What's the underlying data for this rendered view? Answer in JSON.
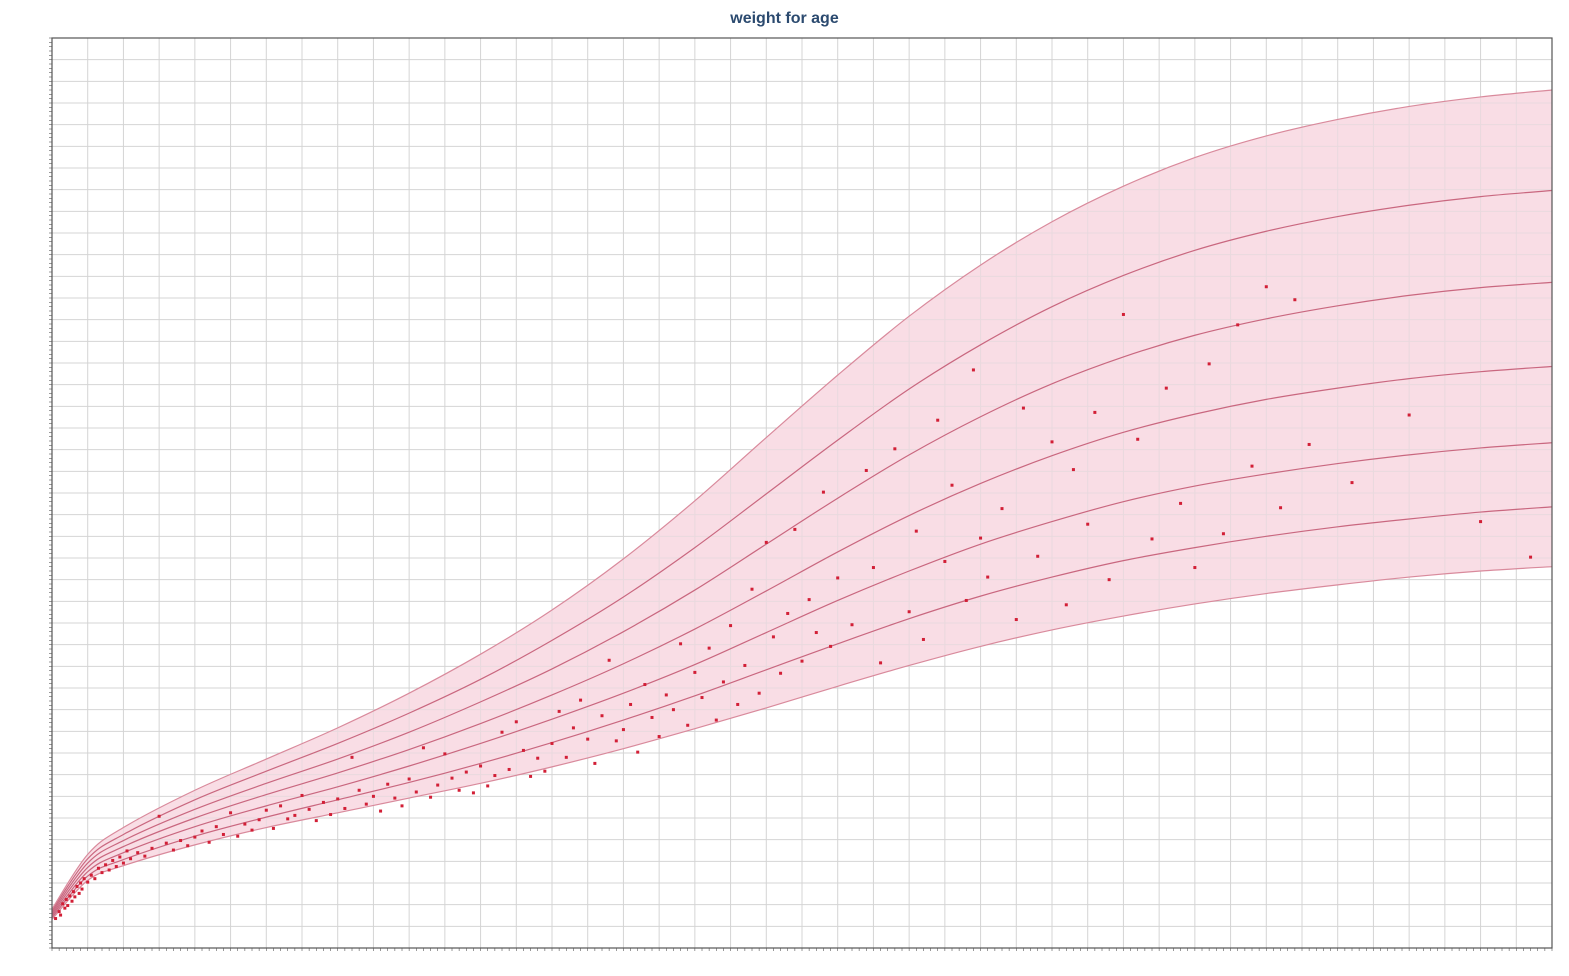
{
  "chart_data": {
    "type": "line",
    "title": "weight for age",
    "xlabel": "",
    "ylabel": "",
    "xlim": [
      0,
      21
    ],
    "ylim": [
      0,
      105
    ],
    "x_tick_step": 0.5,
    "y_tick_step": 2.5,
    "grid": true,
    "legend": "none",
    "colors": {
      "band_fill": "#f9dde5",
      "curve": "#c9677f",
      "outer_curve": "#d98a9c",
      "point": "#d21f36",
      "grid": "#d4d4d4",
      "frame": "#555555",
      "title": "#2b4a6f"
    },
    "percentile_curves": [
      {
        "x": [
          0,
          0.5,
          1,
          2,
          3,
          4,
          5,
          6,
          7,
          8,
          9,
          10,
          11,
          12,
          13,
          14,
          15,
          16,
          17,
          18,
          19,
          20,
          21
        ],
        "values": [
          3.3,
          7.8,
          9.5,
          11.9,
          13.9,
          15.6,
          17.3,
          19.0,
          20.9,
          23.0,
          25.3,
          27.7,
          30.2,
          32.6,
          34.8,
          36.7,
          38.3,
          39.7,
          40.9,
          41.9,
          42.8,
          43.5,
          44.0
        ]
      },
      {
        "x": [
          0,
          0.5,
          1,
          2,
          3,
          4,
          5,
          6,
          7,
          8,
          9,
          10,
          11,
          12,
          13,
          14,
          15,
          16,
          17,
          18,
          19,
          20,
          21
        ],
        "values": [
          3.5,
          8.3,
          10.2,
          12.9,
          15.1,
          17.1,
          19.1,
          21.3,
          23.7,
          26.3,
          29.1,
          32.1,
          35.1,
          38.0,
          40.6,
          42.8,
          44.7,
          46.2,
          47.5,
          48.6,
          49.5,
          50.3,
          50.9
        ]
      },
      {
        "x": [
          0,
          0.5,
          1,
          2,
          3,
          4,
          5,
          6,
          7,
          8,
          9,
          10,
          11,
          12,
          13,
          14,
          15,
          16,
          17,
          18,
          19,
          20,
          21
        ],
        "values": [
          3.7,
          8.8,
          11.0,
          14.0,
          16.4,
          18.6,
          21.0,
          23.6,
          26.4,
          29.4,
          32.7,
          36.4,
          40.1,
          43.5,
          46.6,
          49.2,
          51.5,
          53.3,
          54.7,
          55.9,
          56.9,
          57.7,
          58.3
        ]
      },
      {
        "x": [
          0,
          0.5,
          1,
          2,
          3,
          4,
          5,
          6,
          7,
          8,
          9,
          10,
          11,
          12,
          13,
          14,
          15,
          16,
          17,
          18,
          19,
          20,
          21
        ],
        "values": [
          3.9,
          9.3,
          11.7,
          15.0,
          17.7,
          20.2,
          22.9,
          25.9,
          29.2,
          32.8,
          36.8,
          41.2,
          45.7,
          49.9,
          53.6,
          56.8,
          59.5,
          61.6,
          63.3,
          64.6,
          65.7,
          66.5,
          67.1
        ]
      },
      {
        "x": [
          0,
          0.5,
          1,
          2,
          3,
          4,
          5,
          6,
          7,
          8,
          9,
          10,
          11,
          12,
          13,
          14,
          15,
          16,
          17,
          18,
          19,
          20,
          21
        ],
        "values": [
          4.1,
          9.8,
          12.4,
          16.0,
          19.0,
          21.8,
          24.9,
          28.4,
          32.2,
          36.5,
          41.3,
          46.6,
          51.9,
          56.9,
          61.3,
          65.1,
          68.2,
          70.7,
          72.6,
          74.1,
          75.3,
          76.2,
          76.8
        ]
      },
      {
        "x": [
          0,
          0.5,
          1,
          2,
          3,
          4,
          5,
          6,
          7,
          8,
          9,
          10,
          11,
          12,
          13,
          14,
          15,
          16,
          17,
          18,
          19,
          20,
          21
        ],
        "values": [
          4.3,
          10.3,
          13.1,
          17.1,
          20.4,
          23.6,
          27.1,
          31.0,
          35.5,
          40.5,
          46.2,
          52.4,
          58.6,
          64.5,
          69.6,
          74.0,
          77.6,
          80.5,
          82.7,
          84.4,
          85.7,
          86.7,
          87.4
        ]
      },
      {
        "x": [
          0,
          0.5,
          1,
          2,
          3,
          4,
          5,
          6,
          7,
          8,
          9,
          10,
          11,
          12,
          13,
          14,
          15,
          16,
          17,
          18,
          19,
          20,
          21
        ],
        "values": [
          4.5,
          10.8,
          13.9,
          18.2,
          21.8,
          25.4,
          29.4,
          33.9,
          39.0,
          44.9,
          51.6,
          58.9,
          66.1,
          72.9,
          78.8,
          83.8,
          87.9,
          91.2,
          93.7,
          95.6,
          97.1,
          98.2,
          99.0
        ]
      }
    ],
    "points": [
      {
        "x": 0.05,
        "y": 3.4
      },
      {
        "x": 0.1,
        "y": 4.2
      },
      {
        "x": 0.12,
        "y": 3.8
      },
      {
        "x": 0.15,
        "y": 5.1
      },
      {
        "x": 0.18,
        "y": 4.6
      },
      {
        "x": 0.2,
        "y": 5.6
      },
      {
        "x": 0.22,
        "y": 4.9
      },
      {
        "x": 0.25,
        "y": 6.0
      },
      {
        "x": 0.28,
        "y": 5.4
      },
      {
        "x": 0.3,
        "y": 6.5
      },
      {
        "x": 0.32,
        "y": 5.9
      },
      {
        "x": 0.35,
        "y": 7.1
      },
      {
        "x": 0.38,
        "y": 6.3
      },
      {
        "x": 0.4,
        "y": 7.5
      },
      {
        "x": 0.42,
        "y": 6.8
      },
      {
        "x": 0.45,
        "y": 8.0
      },
      {
        "x": 0.5,
        "y": 7.6
      },
      {
        "x": 0.55,
        "y": 8.4
      },
      {
        "x": 0.6,
        "y": 8.0
      },
      {
        "x": 0.65,
        "y": 9.2
      },
      {
        "x": 0.7,
        "y": 8.7
      },
      {
        "x": 0.75,
        "y": 9.6
      },
      {
        "x": 0.8,
        "y": 9.0
      },
      {
        "x": 0.85,
        "y": 10.1
      },
      {
        "x": 0.9,
        "y": 9.4
      },
      {
        "x": 0.95,
        "y": 10.5
      },
      {
        "x": 1.0,
        "y": 9.8
      },
      {
        "x": 1.05,
        "y": 11.2
      },
      {
        "x": 1.1,
        "y": 10.3
      },
      {
        "x": 1.2,
        "y": 11.0
      },
      {
        "x": 1.3,
        "y": 10.6
      },
      {
        "x": 1.4,
        "y": 11.5
      },
      {
        "x": 1.5,
        "y": 15.2
      },
      {
        "x": 1.6,
        "y": 12.1
      },
      {
        "x": 1.7,
        "y": 11.3
      },
      {
        "x": 1.8,
        "y": 12.4
      },
      {
        "x": 1.9,
        "y": 11.8
      },
      {
        "x": 2.0,
        "y": 12.8
      },
      {
        "x": 2.1,
        "y": 13.5
      },
      {
        "x": 2.2,
        "y": 12.2
      },
      {
        "x": 2.3,
        "y": 14.0
      },
      {
        "x": 2.4,
        "y": 13.1
      },
      {
        "x": 2.5,
        "y": 15.6
      },
      {
        "x": 2.6,
        "y": 12.9
      },
      {
        "x": 2.7,
        "y": 14.3
      },
      {
        "x": 2.8,
        "y": 13.6
      },
      {
        "x": 2.9,
        "y": 14.8
      },
      {
        "x": 3.0,
        "y": 15.9
      },
      {
        "x": 3.1,
        "y": 13.8
      },
      {
        "x": 3.2,
        "y": 16.4
      },
      {
        "x": 3.3,
        "y": 14.9
      },
      {
        "x": 3.4,
        "y": 15.3
      },
      {
        "x": 3.5,
        "y": 17.6
      },
      {
        "x": 3.6,
        "y": 16.0
      },
      {
        "x": 3.7,
        "y": 14.7
      },
      {
        "x": 3.8,
        "y": 16.8
      },
      {
        "x": 3.9,
        "y": 15.4
      },
      {
        "x": 4.0,
        "y": 17.2
      },
      {
        "x": 4.1,
        "y": 16.1
      },
      {
        "x": 4.2,
        "y": 22.0
      },
      {
        "x": 4.3,
        "y": 18.2
      },
      {
        "x": 4.4,
        "y": 16.6
      },
      {
        "x": 4.5,
        "y": 17.5
      },
      {
        "x": 4.6,
        "y": 15.8
      },
      {
        "x": 4.7,
        "y": 18.9
      },
      {
        "x": 4.8,
        "y": 17.3
      },
      {
        "x": 4.9,
        "y": 16.4
      },
      {
        "x": 5.0,
        "y": 19.5
      },
      {
        "x": 5.1,
        "y": 18.0
      },
      {
        "x": 5.2,
        "y": 23.1
      },
      {
        "x": 5.3,
        "y": 17.4
      },
      {
        "x": 5.4,
        "y": 18.8
      },
      {
        "x": 5.5,
        "y": 22.4
      },
      {
        "x": 5.6,
        "y": 19.6
      },
      {
        "x": 5.7,
        "y": 18.2
      },
      {
        "x": 5.8,
        "y": 20.3
      },
      {
        "x": 5.9,
        "y": 17.9
      },
      {
        "x": 6.0,
        "y": 21.0
      },
      {
        "x": 6.1,
        "y": 18.7
      },
      {
        "x": 6.2,
        "y": 19.9
      },
      {
        "x": 6.3,
        "y": 24.9
      },
      {
        "x": 6.4,
        "y": 20.6
      },
      {
        "x": 6.5,
        "y": 26.1
      },
      {
        "x": 6.6,
        "y": 22.8
      },
      {
        "x": 6.7,
        "y": 19.8
      },
      {
        "x": 6.8,
        "y": 21.9
      },
      {
        "x": 6.9,
        "y": 20.4
      },
      {
        "x": 7.0,
        "y": 23.6
      },
      {
        "x": 7.1,
        "y": 27.3
      },
      {
        "x": 7.2,
        "y": 22.0
      },
      {
        "x": 7.3,
        "y": 25.4
      },
      {
        "x": 7.4,
        "y": 28.6
      },
      {
        "x": 7.5,
        "y": 24.1
      },
      {
        "x": 7.6,
        "y": 21.3
      },
      {
        "x": 7.7,
        "y": 26.8
      },
      {
        "x": 7.8,
        "y": 33.2
      },
      {
        "x": 7.9,
        "y": 23.9
      },
      {
        "x": 8.0,
        "y": 25.2
      },
      {
        "x": 8.1,
        "y": 28.1
      },
      {
        "x": 8.2,
        "y": 22.6
      },
      {
        "x": 8.3,
        "y": 30.4
      },
      {
        "x": 8.4,
        "y": 26.6
      },
      {
        "x": 8.5,
        "y": 24.4
      },
      {
        "x": 8.6,
        "y": 29.2
      },
      {
        "x": 8.7,
        "y": 27.5
      },
      {
        "x": 8.8,
        "y": 35.1
      },
      {
        "x": 8.9,
        "y": 25.7
      },
      {
        "x": 9.0,
        "y": 31.8
      },
      {
        "x": 9.1,
        "y": 28.9
      },
      {
        "x": 9.2,
        "y": 34.6
      },
      {
        "x": 9.3,
        "y": 26.3
      },
      {
        "x": 9.4,
        "y": 30.7
      },
      {
        "x": 9.5,
        "y": 37.2
      },
      {
        "x": 9.6,
        "y": 28.1
      },
      {
        "x": 9.7,
        "y": 32.6
      },
      {
        "x": 9.8,
        "y": 41.4
      },
      {
        "x": 9.9,
        "y": 29.4
      },
      {
        "x": 10.0,
        "y": 46.8
      },
      {
        "x": 10.1,
        "y": 35.9
      },
      {
        "x": 10.2,
        "y": 31.7
      },
      {
        "x": 10.3,
        "y": 38.6
      },
      {
        "x": 10.4,
        "y": 48.3
      },
      {
        "x": 10.5,
        "y": 33.1
      },
      {
        "x": 10.6,
        "y": 40.2
      },
      {
        "x": 10.7,
        "y": 36.4
      },
      {
        "x": 10.8,
        "y": 52.6
      },
      {
        "x": 10.9,
        "y": 34.8
      },
      {
        "x": 11.0,
        "y": 42.7
      },
      {
        "x": 11.2,
        "y": 37.3
      },
      {
        "x": 11.4,
        "y": 55.1
      },
      {
        "x": 11.5,
        "y": 43.9
      },
      {
        "x": 11.6,
        "y": 32.9
      },
      {
        "x": 11.8,
        "y": 57.6
      },
      {
        "x": 12.0,
        "y": 38.8
      },
      {
        "x": 12.1,
        "y": 48.1
      },
      {
        "x": 12.2,
        "y": 35.6
      },
      {
        "x": 12.4,
        "y": 60.9
      },
      {
        "x": 12.5,
        "y": 44.6
      },
      {
        "x": 12.6,
        "y": 53.4
      },
      {
        "x": 12.8,
        "y": 40.1
      },
      {
        "x": 12.9,
        "y": 66.7
      },
      {
        "x": 13.0,
        "y": 47.3
      },
      {
        "x": 13.1,
        "y": 42.8
      },
      {
        "x": 13.3,
        "y": 50.7
      },
      {
        "x": 13.5,
        "y": 37.9
      },
      {
        "x": 13.6,
        "y": 62.3
      },
      {
        "x": 13.8,
        "y": 45.2
      },
      {
        "x": 14.0,
        "y": 58.4
      },
      {
        "x": 14.2,
        "y": 39.6
      },
      {
        "x": 14.3,
        "y": 55.2
      },
      {
        "x": 14.5,
        "y": 48.9
      },
      {
        "x": 14.6,
        "y": 61.8
      },
      {
        "x": 14.8,
        "y": 42.5
      },
      {
        "x": 15.0,
        "y": 73.1
      },
      {
        "x": 15.2,
        "y": 58.7
      },
      {
        "x": 15.4,
        "y": 47.2
      },
      {
        "x": 15.6,
        "y": 64.6
      },
      {
        "x": 15.8,
        "y": 51.3
      },
      {
        "x": 16.0,
        "y": 43.9
      },
      {
        "x": 16.2,
        "y": 67.4
      },
      {
        "x": 16.4,
        "y": 47.8
      },
      {
        "x": 16.6,
        "y": 71.9
      },
      {
        "x": 16.8,
        "y": 55.6
      },
      {
        "x": 17.0,
        "y": 76.3
      },
      {
        "x": 17.2,
        "y": 50.8
      },
      {
        "x": 17.4,
        "y": 74.8
      },
      {
        "x": 17.6,
        "y": 58.1
      },
      {
        "x": 18.2,
        "y": 53.7
      },
      {
        "x": 19.0,
        "y": 61.5
      },
      {
        "x": 20.0,
        "y": 49.2
      },
      {
        "x": 20.7,
        "y": 45.1
      }
    ]
  }
}
